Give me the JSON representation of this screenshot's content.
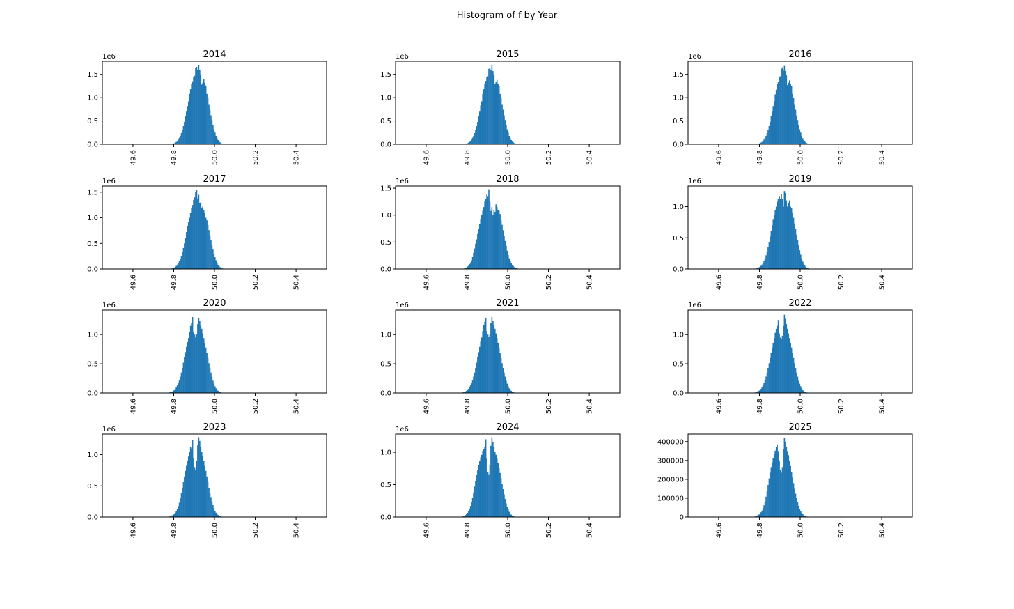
{
  "figure": {
    "title": "Histogram of f by Year"
  },
  "colors": {
    "bar": "#1f77b4"
  },
  "chart_data": [
    {
      "type": "bar",
      "title": "2014",
      "xlim": [
        49.45,
        50.55
      ],
      "ylim": [
        0,
        1.78
      ],
      "y_offset": "1e6",
      "xticks": [
        "49.6",
        "49.8",
        "50.0",
        "50.2",
        "50.4"
      ],
      "yticks": [
        "0.0",
        "0.5",
        "1.0",
        "1.5"
      ],
      "ytick_values": [
        0,
        0.5,
        1,
        1.5
      ],
      "bins": {
        "start": 49.775,
        "width": 0.005,
        "values": [
          0.002,
          0.004,
          0.006,
          0.01,
          0.015,
          0.022,
          0.035,
          0.05,
          0.07,
          0.1,
          0.14,
          0.18,
          0.24,
          0.31,
          0.39,
          0.48,
          0.6,
          0.7,
          0.82,
          0.92,
          1.08,
          1.18,
          1.3,
          1.35,
          1.45,
          1.47,
          1.64,
          1.66,
          1.59,
          1.69,
          1.59,
          1.5,
          1.28,
          1.32,
          1.39,
          1.32,
          1.26,
          1.08,
          1.0,
          0.86,
          0.74,
          0.62,
          0.52,
          0.41,
          0.32,
          0.25,
          0.18,
          0.13,
          0.09,
          0.06,
          0.04,
          0.025,
          0.015,
          0.01,
          0.006,
          0.004,
          0.002
        ]
      }
    },
    {
      "type": "bar",
      "title": "2015",
      "xlim": [
        49.45,
        50.55
      ],
      "ylim": [
        0,
        1.78
      ],
      "y_offset": "1e6",
      "xticks": [
        "49.6",
        "49.8",
        "50.0",
        "50.2",
        "50.4"
      ],
      "yticks": [
        "0.0",
        "0.5",
        "1.0",
        "1.5"
      ],
      "ytick_values": [
        0,
        0.5,
        1,
        1.5
      ],
      "bins": {
        "start": 49.775,
        "width": 0.005,
        "values": [
          0.002,
          0.004,
          0.006,
          0.01,
          0.015,
          0.022,
          0.035,
          0.05,
          0.07,
          0.1,
          0.14,
          0.18,
          0.24,
          0.31,
          0.39,
          0.48,
          0.6,
          0.7,
          0.83,
          0.92,
          1.08,
          1.18,
          1.3,
          1.36,
          1.44,
          1.46,
          1.62,
          1.64,
          1.6,
          1.7,
          1.57,
          1.5,
          1.3,
          1.33,
          1.38,
          1.3,
          1.25,
          1.08,
          1.0,
          0.86,
          0.74,
          0.62,
          0.52,
          0.41,
          0.32,
          0.25,
          0.18,
          0.13,
          0.09,
          0.06,
          0.04,
          0.025,
          0.015,
          0.01,
          0.006,
          0.004,
          0.002
        ]
      }
    },
    {
      "type": "bar",
      "title": "2016",
      "xlim": [
        49.45,
        50.55
      ],
      "ylim": [
        0,
        1.78
      ],
      "y_offset": "1e6",
      "xticks": [
        "49.6",
        "49.8",
        "50.0",
        "50.2",
        "50.4"
      ],
      "yticks": [
        "0.0",
        "0.5",
        "1.0",
        "1.5"
      ],
      "ytick_values": [
        0,
        0.5,
        1,
        1.5
      ],
      "bins": {
        "start": 49.775,
        "width": 0.005,
        "values": [
          0.002,
          0.004,
          0.006,
          0.01,
          0.015,
          0.022,
          0.035,
          0.05,
          0.07,
          0.1,
          0.14,
          0.18,
          0.24,
          0.31,
          0.39,
          0.48,
          0.6,
          0.7,
          0.82,
          0.92,
          1.07,
          1.17,
          1.3,
          1.34,
          1.44,
          1.46,
          1.62,
          1.65,
          1.58,
          1.68,
          1.57,
          1.48,
          1.27,
          1.32,
          1.37,
          1.3,
          1.25,
          1.08,
          1.0,
          0.86,
          0.74,
          0.62,
          0.52,
          0.41,
          0.32,
          0.25,
          0.18,
          0.13,
          0.09,
          0.06,
          0.04,
          0.025,
          0.015,
          0.01,
          0.006,
          0.004,
          0.002
        ]
      }
    },
    {
      "type": "bar",
      "title": "2017",
      "xlim": [
        49.45,
        50.55
      ],
      "ylim": [
        0,
        1.62
      ],
      "y_offset": "1e6",
      "xticks": [
        "49.6",
        "49.8",
        "50.0",
        "50.2",
        "50.4"
      ],
      "yticks": [
        "0.0",
        "0.5",
        "1.0",
        "1.5"
      ],
      "ytick_values": [
        0,
        0.5,
        1,
        1.5
      ],
      "bins": {
        "start": 49.775,
        "width": 0.005,
        "values": [
          0.002,
          0.004,
          0.006,
          0.012,
          0.018,
          0.028,
          0.04,
          0.06,
          0.085,
          0.115,
          0.15,
          0.2,
          0.26,
          0.33,
          0.41,
          0.5,
          0.61,
          0.72,
          0.83,
          0.92,
          1.0,
          1.1,
          1.2,
          1.25,
          1.35,
          1.4,
          1.5,
          1.55,
          1.38,
          1.45,
          1.28,
          1.3,
          1.2,
          1.22,
          1.15,
          1.1,
          1.0,
          0.95,
          0.86,
          0.76,
          0.66,
          0.56,
          0.46,
          0.38,
          0.3,
          0.23,
          0.17,
          0.12,
          0.08,
          0.055,
          0.035,
          0.022,
          0.013,
          0.008,
          0.005,
          0.003,
          0.002
        ]
      }
    },
    {
      "type": "bar",
      "title": "2018",
      "xlim": [
        49.45,
        50.55
      ],
      "ylim": [
        0,
        1.54
      ],
      "y_offset": "1e6",
      "xticks": [
        "49.6",
        "49.8",
        "50.0",
        "50.2",
        "50.4"
      ],
      "yticks": [
        "0.0",
        "0.5",
        "1.0",
        "1.5"
      ],
      "ytick_values": [
        0,
        0.5,
        1,
        1.5
      ],
      "bins": {
        "start": 49.775,
        "width": 0.005,
        "values": [
          0.003,
          0.006,
          0.01,
          0.018,
          0.028,
          0.045,
          0.06,
          0.09,
          0.12,
          0.16,
          0.22,
          0.3,
          0.38,
          0.47,
          0.55,
          0.65,
          0.74,
          0.83,
          0.92,
          1.0,
          1.08,
          1.15,
          1.25,
          1.3,
          1.38,
          1.34,
          1.48,
          1.25,
          1.08,
          1.15,
          1.0,
          1.1,
          1.06,
          1.2,
          1.15,
          1.1,
          1.08,
          1.02,
          0.9,
          0.82,
          0.72,
          0.62,
          0.52,
          0.43,
          0.34,
          0.26,
          0.2,
          0.15,
          0.11,
          0.08,
          0.055,
          0.035,
          0.022,
          0.013,
          0.008,
          0.005,
          0.003
        ]
      }
    },
    {
      "type": "bar",
      "title": "2019",
      "xlim": [
        49.45,
        50.55
      ],
      "ylim": [
        0,
        1.33
      ],
      "y_offset": "1e6",
      "xticks": [
        "49.6",
        "49.8",
        "50.0",
        "50.2",
        "50.4"
      ],
      "yticks": [
        "0.0",
        "0.5",
        "1.0"
      ],
      "ytick_values": [
        0,
        0.5,
        1
      ],
      "bins": {
        "start": 49.775,
        "width": 0.005,
        "values": [
          0.003,
          0.006,
          0.01,
          0.016,
          0.025,
          0.035,
          0.05,
          0.07,
          0.095,
          0.13,
          0.17,
          0.22,
          0.28,
          0.35,
          0.43,
          0.52,
          0.61,
          0.7,
          0.79,
          0.86,
          0.94,
          1.0,
          1.08,
          1.13,
          1.16,
          1.12,
          1.2,
          1.12,
          1.0,
          1.25,
          1.22,
          1.1,
          1.0,
          1.05,
          1.1,
          1.0,
          0.98,
          0.9,
          0.82,
          0.73,
          0.64,
          0.55,
          0.46,
          0.38,
          0.3,
          0.23,
          0.17,
          0.12,
          0.085,
          0.058,
          0.038,
          0.024,
          0.015,
          0.009,
          0.005,
          0.003,
          0.002
        ]
      }
    },
    {
      "type": "bar",
      "title": "2020",
      "xlim": [
        49.45,
        50.55
      ],
      "ylim": [
        0,
        1.42
      ],
      "y_offset": "1e6",
      "xticks": [
        "49.6",
        "49.8",
        "50.0",
        "50.2",
        "50.4"
      ],
      "yticks": [
        "0.0",
        "0.5",
        "1.0"
      ],
      "ytick_values": [
        0,
        0.5,
        1
      ],
      "bins": {
        "start": 49.765,
        "width": 0.005,
        "values": [
          0.003,
          0.005,
          0.008,
          0.012,
          0.018,
          0.026,
          0.036,
          0.05,
          0.07,
          0.095,
          0.13,
          0.17,
          0.22,
          0.28,
          0.35,
          0.43,
          0.52,
          0.61,
          0.7,
          0.79,
          0.87,
          0.94,
          1.05,
          1.15,
          1.2,
          1.3,
          1.05,
          1.0,
          0.95,
          1.0,
          1.18,
          1.28,
          1.23,
          1.15,
          1.1,
          1.02,
          0.94,
          0.86,
          0.78,
          0.69,
          0.6,
          0.51,
          0.43,
          0.35,
          0.28,
          0.21,
          0.16,
          0.115,
          0.08,
          0.055,
          0.036,
          0.023,
          0.014,
          0.008,
          0.005,
          0.003,
          0.002
        ]
      }
    },
    {
      "type": "bar",
      "title": "2021",
      "xlim": [
        49.45,
        50.55
      ],
      "ylim": [
        0,
        1.42
      ],
      "y_offset": "1e6",
      "xticks": [
        "49.6",
        "49.8",
        "50.0",
        "50.2",
        "50.4"
      ],
      "yticks": [
        "0.0",
        "0.5",
        "1.0"
      ],
      "ytick_values": [
        0,
        0.5,
        1
      ],
      "bins": {
        "start": 49.765,
        "width": 0.005,
        "values": [
          0.003,
          0.005,
          0.008,
          0.012,
          0.018,
          0.026,
          0.036,
          0.05,
          0.07,
          0.095,
          0.13,
          0.17,
          0.22,
          0.28,
          0.35,
          0.43,
          0.52,
          0.61,
          0.7,
          0.79,
          0.88,
          0.95,
          1.06,
          1.16,
          1.22,
          1.29,
          1.06,
          1.0,
          0.96,
          1.0,
          1.2,
          1.3,
          1.24,
          1.16,
          1.1,
          1.02,
          0.94,
          0.86,
          0.78,
          0.69,
          0.6,
          0.51,
          0.43,
          0.35,
          0.28,
          0.21,
          0.16,
          0.115,
          0.08,
          0.055,
          0.036,
          0.023,
          0.014,
          0.008,
          0.005,
          0.003,
          0.002
        ]
      }
    },
    {
      "type": "bar",
      "title": "2022",
      "xlim": [
        49.45,
        50.55
      ],
      "ylim": [
        0,
        1.42
      ],
      "y_offset": "1e6",
      "xticks": [
        "49.6",
        "49.8",
        "50.0",
        "50.2",
        "50.4"
      ],
      "yticks": [
        "0.0",
        "0.5",
        "1.0"
      ],
      "ytick_values": [
        0,
        0.5,
        1
      ],
      "bins": {
        "start": 49.765,
        "width": 0.005,
        "values": [
          0.003,
          0.005,
          0.008,
          0.012,
          0.018,
          0.026,
          0.036,
          0.05,
          0.07,
          0.095,
          0.13,
          0.17,
          0.22,
          0.28,
          0.35,
          0.43,
          0.51,
          0.6,
          0.69,
          0.78,
          0.86,
          0.94,
          1.03,
          1.1,
          1.15,
          1.25,
          1.02,
          0.95,
          0.92,
          0.98,
          1.15,
          1.34,
          1.27,
          1.18,
          1.1,
          1.02,
          0.94,
          0.86,
          0.78,
          0.69,
          0.6,
          0.51,
          0.43,
          0.35,
          0.28,
          0.21,
          0.16,
          0.115,
          0.08,
          0.055,
          0.036,
          0.023,
          0.014,
          0.008,
          0.005,
          0.003,
          0.002
        ]
      }
    },
    {
      "type": "bar",
      "title": "2023",
      "xlim": [
        49.45,
        50.55
      ],
      "ylim": [
        0,
        1.33
      ],
      "y_offset": "1e6",
      "xticks": [
        "49.6",
        "49.8",
        "50.0",
        "50.2",
        "50.4"
      ],
      "yticks": [
        "0.0",
        "0.5",
        "1.0"
      ],
      "ytick_values": [
        0,
        0.5,
        1
      ],
      "bins": {
        "start": 49.765,
        "width": 0.005,
        "values": [
          0.003,
          0.005,
          0.008,
          0.012,
          0.018,
          0.026,
          0.036,
          0.05,
          0.07,
          0.095,
          0.13,
          0.175,
          0.23,
          0.3,
          0.38,
          0.47,
          0.56,
          0.65,
          0.74,
          0.82,
          0.9,
          0.97,
          1.05,
          1.12,
          1.1,
          1.23,
          0.95,
          0.8,
          0.76,
          0.9,
          1.15,
          1.28,
          1.22,
          1.13,
          1.05,
          0.98,
          0.9,
          0.82,
          0.74,
          0.65,
          0.56,
          0.47,
          0.39,
          0.32,
          0.25,
          0.19,
          0.14,
          0.1,
          0.07,
          0.048,
          0.032,
          0.02,
          0.012,
          0.007,
          0.004,
          0.003,
          0.002
        ]
      }
    },
    {
      "type": "bar",
      "title": "2024",
      "xlim": [
        49.45,
        50.55
      ],
      "ylim": [
        0,
        1.28
      ],
      "y_offset": "1e6",
      "xticks": [
        "49.6",
        "49.8",
        "50.0",
        "50.2",
        "50.4"
      ],
      "yticks": [
        "0.0",
        "0.5",
        "1.0"
      ],
      "ytick_values": [
        0,
        0.5,
        1
      ],
      "bins": {
        "start": 49.765,
        "width": 0.005,
        "values": [
          0.003,
          0.005,
          0.008,
          0.012,
          0.02,
          0.03,
          0.045,
          0.065,
          0.09,
          0.125,
          0.17,
          0.23,
          0.3,
          0.38,
          0.47,
          0.56,
          0.65,
          0.73,
          0.8,
          0.87,
          0.92,
          0.96,
          1.02,
          1.05,
          1.08,
          1.2,
          0.9,
          0.7,
          0.66,
          0.8,
          1.1,
          1.23,
          1.16,
          1.08,
          1.0,
          0.96,
          0.9,
          0.83,
          0.76,
          0.68,
          0.6,
          0.51,
          0.43,
          0.35,
          0.28,
          0.21,
          0.16,
          0.115,
          0.08,
          0.055,
          0.036,
          0.023,
          0.014,
          0.008,
          0.005,
          0.003,
          0.002
        ]
      }
    },
    {
      "type": "bar",
      "title": "2025",
      "xlim": [
        49.45,
        50.55
      ],
      "ylim": [
        0,
        440000
      ],
      "y_offset": "",
      "xticks": [
        "49.6",
        "49.8",
        "50.0",
        "50.2",
        "50.4"
      ],
      "yticks": [
        "0",
        "100000",
        "200000",
        "300000",
        "400000"
      ],
      "ytick_values": [
        0,
        100000,
        200000,
        300000,
        400000
      ],
      "bins": {
        "start": 49.765,
        "width": 0.005,
        "values": [
          800,
          1500,
          2500,
          4000,
          6000,
          9000,
          13000,
          18000,
          25000,
          34000,
          46000,
          62000,
          82000,
          108000,
          138000,
          170000,
          205000,
          235000,
          265000,
          290000,
          312000,
          332000,
          352000,
          372000,
          385000,
          350000,
          300000,
          250000,
          235000,
          265000,
          360000,
          420000,
          400000,
          372000,
          350000,
          328000,
          300000,
          270000,
          240000,
          210000,
          180000,
          150000,
          124000,
          100000,
          80000,
          60000,
          44000,
          32000,
          22000,
          15000,
          10000,
          6500,
          4000,
          2500,
          1500,
          900,
          500
        ]
      }
    }
  ]
}
